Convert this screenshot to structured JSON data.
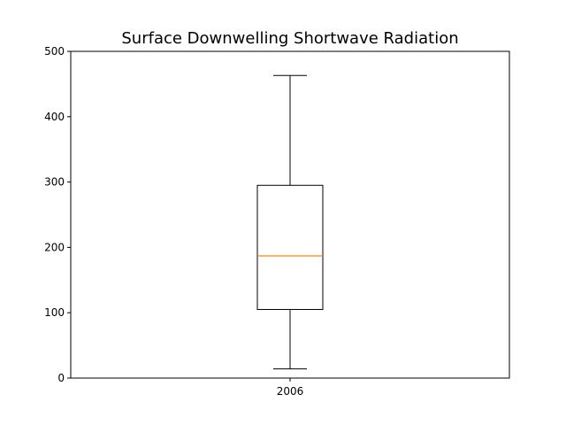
{
  "chart_data": {
    "type": "box",
    "title": "Surface Downwelling Shortwave Radiation",
    "xlabel": "",
    "ylabel": "",
    "ylim": [
      0,
      500
    ],
    "yticks": [
      0,
      100,
      200,
      300,
      400,
      500
    ],
    "grid": false,
    "categories": [
      "2006"
    ],
    "boxes": [
      {
        "label": "2006",
        "whisker_low": 14,
        "q1": 105,
        "median": 187,
        "q3": 295,
        "whisker_high": 463
      }
    ],
    "colors": {
      "box": "#000000",
      "median": "#ff7f0e"
    }
  }
}
